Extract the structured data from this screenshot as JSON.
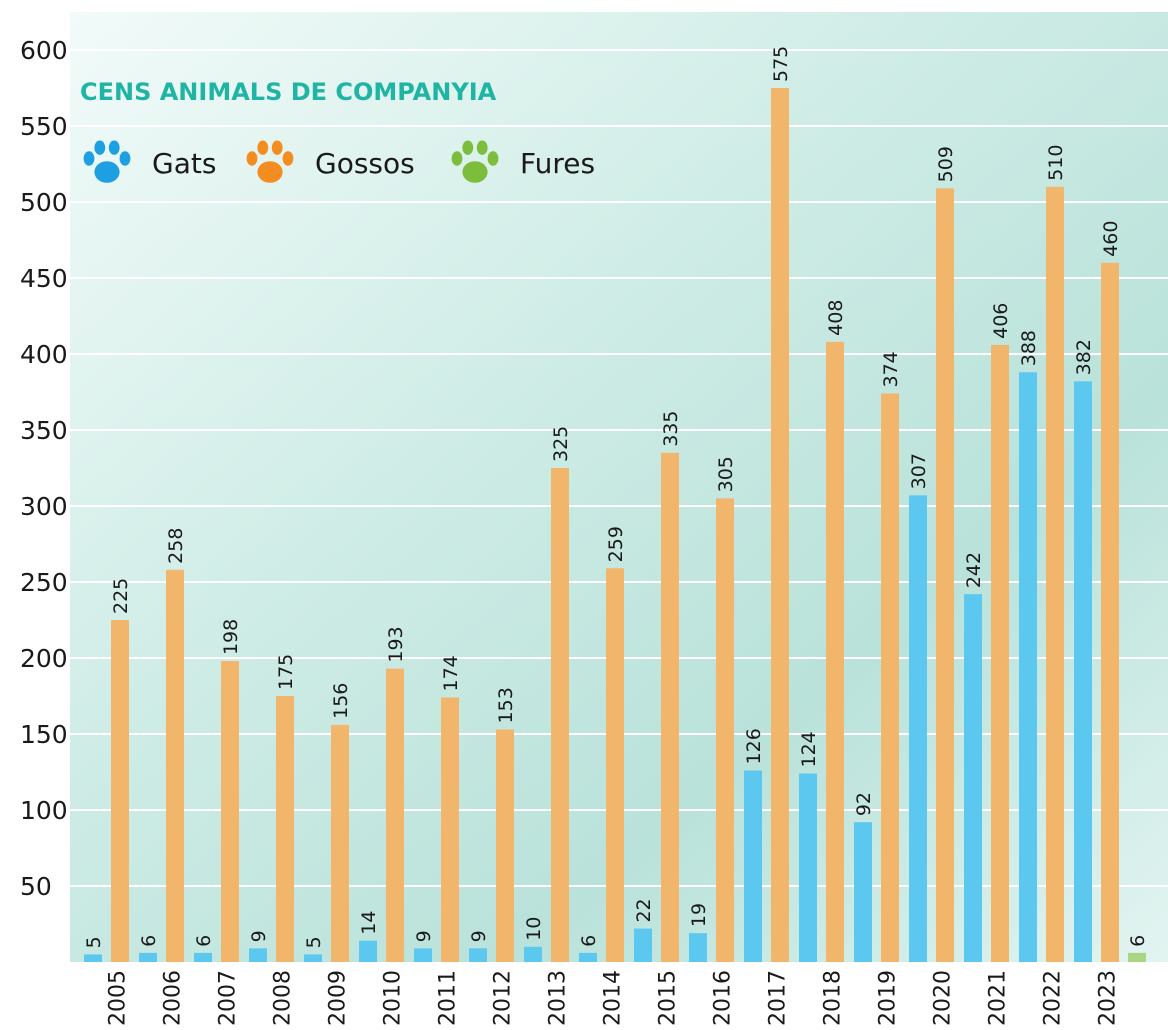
{
  "chart_data": {
    "type": "bar",
    "title": "CENS ANIMALS DE COMPANYIA",
    "categories": [
      "2005",
      "2006",
      "2007",
      "2008",
      "2009",
      "2010",
      "2011",
      "2012",
      "2013",
      "2014",
      "2015",
      "2016",
      "2017",
      "2018",
      "2019",
      "2020",
      "2021",
      "2022",
      "2023"
    ],
    "series": [
      {
        "name": "Gats",
        "color": "#5cc8ef",
        "marker_color": "#1d9fe2",
        "values": [
          5,
          6,
          6,
          9,
          5,
          14,
          9,
          9,
          10,
          6,
          22,
          19,
          126,
          124,
          92,
          307,
          242,
          388,
          382
        ]
      },
      {
        "name": "Gossos",
        "color": "#f2b56c",
        "marker_color": "#f38d20",
        "values": [
          225,
          258,
          198,
          175,
          156,
          193,
          174,
          153,
          325,
          259,
          335,
          305,
          575,
          408,
          374,
          509,
          406,
          510,
          460
        ]
      },
      {
        "name": "Fures",
        "color": "#a9d683",
        "marker_color": "#7dbd3d",
        "values": [
          null,
          null,
          null,
          null,
          null,
          null,
          null,
          null,
          null,
          null,
          null,
          null,
          null,
          null,
          null,
          null,
          null,
          null,
          6
        ]
      }
    ],
    "ylim": [
      0,
      600
    ],
    "yticks": [
      50,
      100,
      150,
      200,
      250,
      300,
      350,
      400,
      450,
      500,
      550,
      600
    ],
    "grid": true
  }
}
